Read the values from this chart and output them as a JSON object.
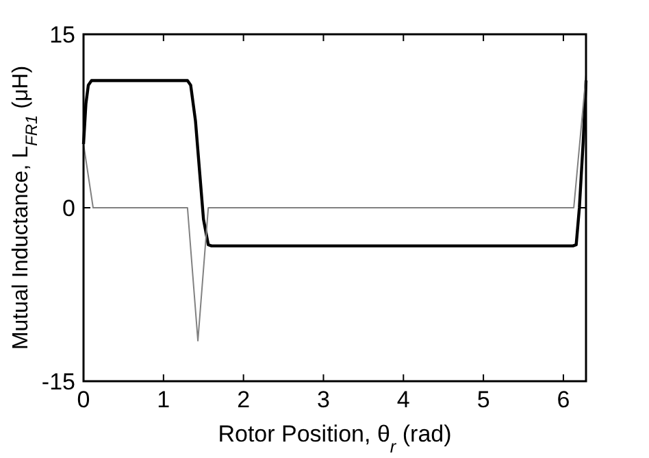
{
  "chart_data": {
    "type": "line",
    "xlabel": "Rotor Position, θ$_{r}$ (rad)",
    "ylabel": "Mutual Inductance, L$_{FR1}$ (μH)",
    "xlim": [
      0,
      6.283
    ],
    "ylim": [
      -15,
      15
    ],
    "xticks": [
      0,
      1,
      2,
      3,
      4,
      5,
      6
    ],
    "yticks": [
      -15,
      0,
      15
    ],
    "grid": false,
    "marker": "none",
    "line_style": "solid",
    "series": [
      {
        "color": "#000000",
        "x": [
          0,
          0.03,
          0.06,
          0.1,
          0.15,
          1.3,
          1.34,
          1.4,
          1.5,
          1.56,
          1.6,
          6.12,
          6.16,
          6.2,
          6.25,
          6.283
        ],
        "values": [
          5.5,
          9,
          10.6,
          11,
          11,
          11,
          10.6,
          7.5,
          -1,
          -3.2,
          -3.3,
          -3.3,
          -3.2,
          0,
          6,
          11
        ]
      },
      {
        "color": "#808080",
        "x": [
          0,
          0.12,
          1.3,
          1.43,
          1.56,
          6.13,
          6.283
        ],
        "values": [
          5.5,
          0,
          0,
          -11.5,
          0,
          0,
          11.5
        ]
      }
    ]
  }
}
